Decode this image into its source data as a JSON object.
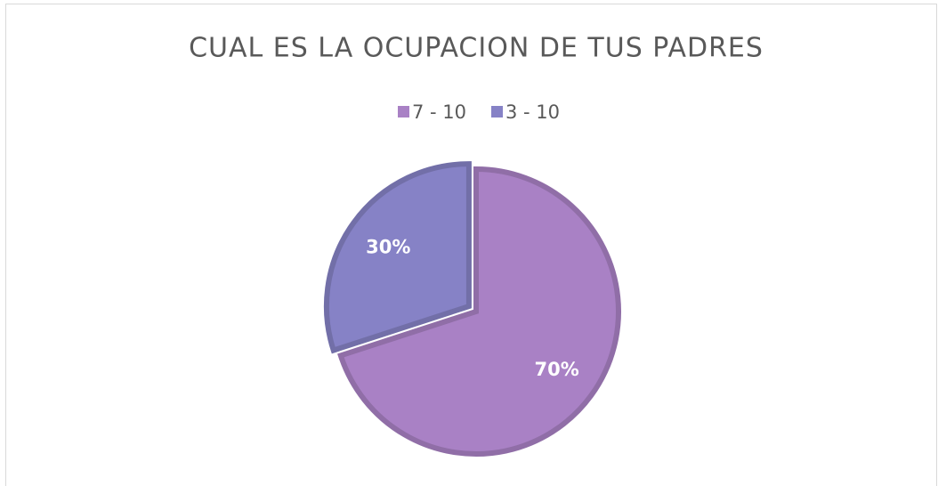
{
  "chart_data": {
    "type": "pie",
    "title": "CUAL ES LA OCUPACION DE TUS PADRES",
    "categories": [
      "7 - 10",
      "3 - 10"
    ],
    "values": [
      70,
      30
    ],
    "value_labels": [
      "70%",
      "30%"
    ],
    "colors": [
      "#a981c5",
      "#8682c6"
    ],
    "legend": "top"
  }
}
